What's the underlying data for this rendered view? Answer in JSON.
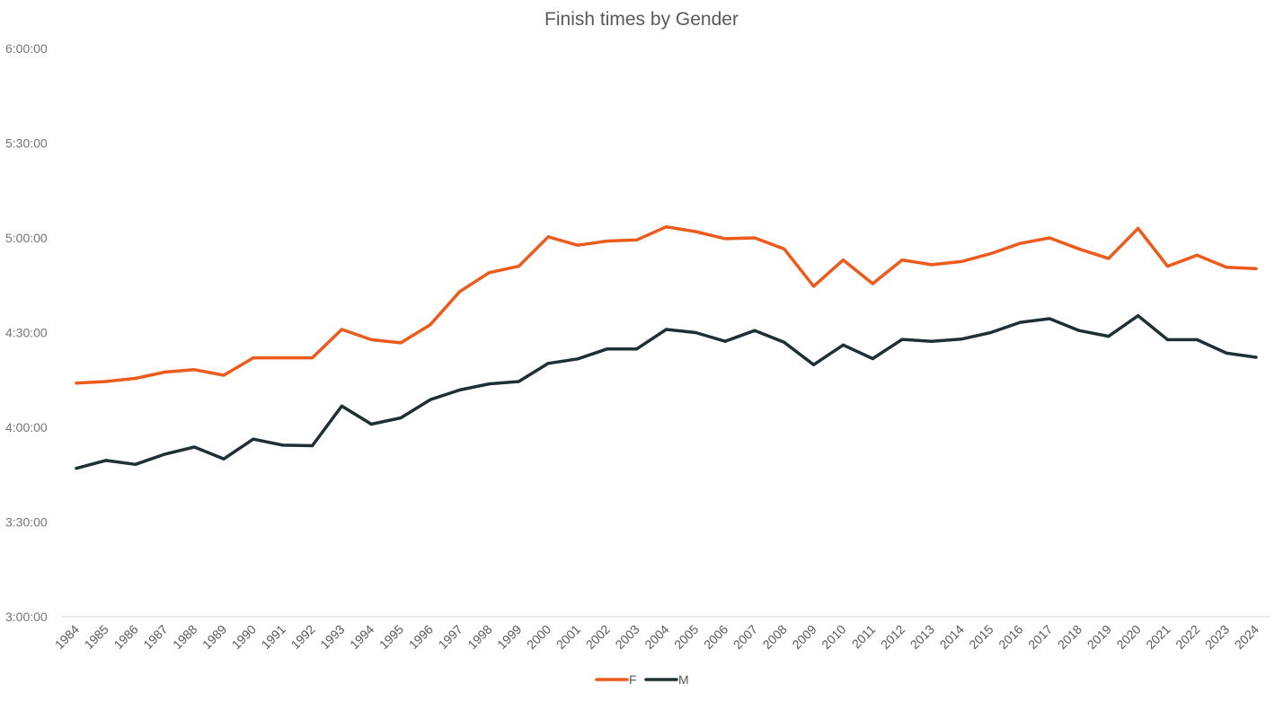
{
  "chart_data": {
    "type": "line",
    "title": "Finish times by Gender",
    "xlabel": "",
    "ylabel": "",
    "x": [
      "1984",
      "1985",
      "1986",
      "1987",
      "1988",
      "1989",
      "1990",
      "1991",
      "1992",
      "1993",
      "1994",
      "1995",
      "1996",
      "1997",
      "1998",
      "1999",
      "2000",
      "2001",
      "2002",
      "2003",
      "2004",
      "2005",
      "2006",
      "2007",
      "2008",
      "2009",
      "2010",
      "2011",
      "2012",
      "2013",
      "2014",
      "2015",
      "2016",
      "2017",
      "2018",
      "2019",
      "2020",
      "2021",
      "2022",
      "2023",
      "2024"
    ],
    "y_ticks": [
      "3:00:00",
      "3:30:00",
      "4:00:00",
      "4:30:00",
      "5:00:00",
      "5:30:00",
      "6:00:00"
    ],
    "ylim_seconds": [
      10800,
      21600
    ],
    "y_tick_step_seconds": 1800,
    "grid": false,
    "legend_position": "bottom",
    "series": [
      {
        "name": "F",
        "color": "#ec5a1c",
        "values": [
          "4:14:00",
          "4:14:30",
          "4:15:30",
          "4:17:30",
          "4:18:15",
          "4:16:30",
          "4:22:00",
          "4:22:00",
          "4:22:00",
          "4:31:00",
          "4:27:45",
          "4:26:45",
          "4:32:30",
          "4:43:00",
          "4:49:00",
          "4:51:00",
          "5:00:20",
          "4:57:40",
          "4:59:00",
          "4:59:20",
          "5:03:30",
          "5:02:00",
          "4:59:45",
          "5:00:00",
          "4:56:30",
          "4:44:40",
          "4:53:00",
          "4:45:30",
          "4:53:00",
          "4:51:30",
          "4:52:30",
          "4:55:00",
          "4:58:15",
          "5:00:00",
          "4:56:30",
          "4:53:30",
          "5:03:00",
          "4:51:00",
          "4:54:30",
          "4:50:40",
          "4:50:15"
        ]
      },
      {
        "name": "M",
        "color": "#1f3035",
        "values": [
          "3:47:00",
          "3:49:30",
          "3:48:15",
          "3:51:30",
          "3:53:45",
          "3:50:00",
          "3:56:15",
          "3:54:20",
          "3:54:10",
          "4:06:45",
          "4:01:00",
          "4:03:00",
          "4:08:45",
          "4:11:50",
          "4:13:45",
          "4:14:30",
          "4:20:15",
          "4:21:40",
          "4:24:50",
          "4:24:50",
          "4:31:00",
          "4:30:00",
          "4:27:15",
          "4:30:40",
          "4:26:55",
          "4:19:50",
          "4:26:05",
          "4:21:45",
          "4:27:50",
          "4:27:15",
          "4:27:55",
          "4:30:00",
          "4:33:15",
          "4:34:25",
          "4:30:40",
          "4:28:50",
          "4:35:20",
          "4:27:45",
          "4:27:45",
          "4:23:30",
          "4:22:10"
        ]
      }
    ]
  }
}
